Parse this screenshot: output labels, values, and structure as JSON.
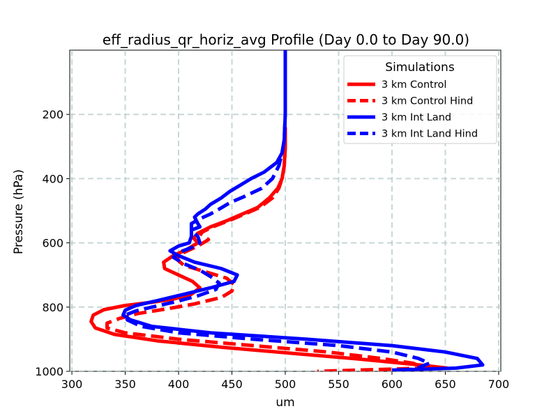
{
  "chart_data": {
    "type": "line",
    "title": "eff_radius_qr_horiz_avg Profile (Day 0.0 to Day 90.0)",
    "xlabel": "um",
    "ylabel": "Pressure (hPa)",
    "xlim": [
      298,
      702
    ],
    "ylim": [
      1000,
      0
    ],
    "x_ticks": [
      300,
      350,
      400,
      450,
      500,
      550,
      600,
      650,
      700
    ],
    "y_ticks": [
      200,
      400,
      600,
      800,
      1000
    ],
    "grid": true,
    "legend": {
      "title": "Simulations",
      "placement": "top-right"
    },
    "series": [
      {
        "name": "3 km Control",
        "color": "#ff0000",
        "dash": "solid",
        "points": [
          [
            500,
            240
          ],
          [
            500,
            300
          ],
          [
            499,
            360
          ],
          [
            497,
            400
          ],
          [
            493,
            430
          ],
          [
            485,
            460
          ],
          [
            474,
            490
          ],
          [
            460,
            510
          ],
          [
            446,
            530
          ],
          [
            430,
            550
          ],
          [
            418,
            570
          ],
          [
            414,
            585
          ],
          [
            418,
            600
          ],
          [
            408,
            620
          ],
          [
            395,
            640
          ],
          [
            386,
            660
          ],
          [
            387,
            680
          ],
          [
            400,
            700
          ],
          [
            413,
            720
          ],
          [
            420,
            740
          ],
          [
            412,
            760
          ],
          [
            395,
            775
          ],
          [
            375,
            785
          ],
          [
            350,
            795
          ],
          [
            330,
            808
          ],
          [
            320,
            825
          ],
          [
            318,
            845
          ],
          [
            322,
            865
          ],
          [
            340,
            885
          ],
          [
            380,
            905
          ],
          [
            440,
            925
          ],
          [
            510,
            945
          ],
          [
            570,
            962
          ],
          [
            620,
            978
          ],
          [
            652,
            990
          ]
        ]
      },
      {
        "name": "3 km Control Hind",
        "color": "#ff0000",
        "dash": "dashed",
        "points": [
          [
            500,
            240
          ],
          [
            500,
            300
          ],
          [
            499,
            360
          ],
          [
            497,
            400
          ],
          [
            494,
            430
          ],
          [
            488,
            460
          ],
          [
            476,
            490
          ],
          [
            462,
            510
          ],
          [
            448,
            530
          ],
          [
            432,
            550
          ],
          [
            420,
            570
          ],
          [
            428,
            590
          ],
          [
            418,
            610
          ],
          [
            405,
            630
          ],
          [
            398,
            650
          ],
          [
            405,
            670
          ],
          [
            425,
            690
          ],
          [
            445,
            710
          ],
          [
            452,
            730
          ],
          [
            450,
            750
          ],
          [
            440,
            770
          ],
          [
            415,
            790
          ],
          [
            390,
            805
          ],
          [
            362,
            820
          ],
          [
            345,
            835
          ],
          [
            333,
            850
          ],
          [
            333,
            865
          ],
          [
            350,
            880
          ],
          [
            400,
            900
          ],
          [
            470,
            920
          ],
          [
            540,
            940
          ],
          [
            590,
            960
          ],
          [
            620,
            975
          ],
          [
            630,
            990
          ],
          [
            570,
            996
          ],
          [
            530,
            1000
          ]
        ]
      },
      {
        "name": "3 km Int Land",
        "color": "#0000ff",
        "dash": "solid",
        "points": [
          [
            500,
            0
          ],
          [
            500,
            100
          ],
          [
            500,
            200
          ],
          [
            499,
            280
          ],
          [
            497,
            320
          ],
          [
            492,
            350
          ],
          [
            480,
            380
          ],
          [
            468,
            400
          ],
          [
            458,
            420
          ],
          [
            448,
            440
          ],
          [
            440,
            460
          ],
          [
            430,
            480
          ],
          [
            425,
            495
          ],
          [
            418,
            510
          ],
          [
            415,
            520
          ],
          [
            418,
            540
          ],
          [
            420,
            550
          ],
          [
            412,
            560
          ],
          [
            412,
            580
          ],
          [
            410,
            600
          ],
          [
            400,
            610
          ],
          [
            392,
            625
          ],
          [
            400,
            640
          ],
          [
            415,
            660
          ],
          [
            440,
            680
          ],
          [
            455,
            700
          ],
          [
            452,
            720
          ],
          [
            430,
            740
          ],
          [
            405,
            760
          ],
          [
            380,
            780
          ],
          [
            360,
            795
          ],
          [
            350,
            810
          ],
          [
            348,
            825
          ],
          [
            355,
            840
          ],
          [
            375,
            860
          ],
          [
            430,
            880
          ],
          [
            520,
            900
          ],
          [
            600,
            920
          ],
          [
            650,
            940
          ],
          [
            680,
            960
          ],
          [
            685,
            980
          ],
          [
            660,
            990
          ],
          [
            600,
            996
          ]
        ]
      },
      {
        "name": "3 km Int Land Hind",
        "color": "#0000ff",
        "dash": "dashed",
        "points": [
          [
            500,
            0
          ],
          [
            500,
            100
          ],
          [
            500,
            200
          ],
          [
            499,
            280
          ],
          [
            497,
            320
          ],
          [
            494,
            360
          ],
          [
            488,
            400
          ],
          [
            478,
            430
          ],
          [
            462,
            455
          ],
          [
            448,
            475
          ],
          [
            438,
            495
          ],
          [
            430,
            510
          ],
          [
            420,
            525
          ],
          [
            412,
            540
          ],
          [
            412,
            560
          ],
          [
            418,
            580
          ],
          [
            420,
            600
          ],
          [
            412,
            615
          ],
          [
            400,
            630
          ],
          [
            395,
            645
          ],
          [
            405,
            665
          ],
          [
            420,
            685
          ],
          [
            430,
            705
          ],
          [
            438,
            725
          ],
          [
            435,
            745
          ],
          [
            418,
            765
          ],
          [
            395,
            785
          ],
          [
            375,
            800
          ],
          [
            360,
            812
          ],
          [
            350,
            825
          ],
          [
            352,
            840
          ],
          [
            365,
            860
          ],
          [
            400,
            880
          ],
          [
            470,
            900
          ],
          [
            550,
            920
          ],
          [
            600,
            940
          ],
          [
            625,
            960
          ],
          [
            635,
            975
          ],
          [
            625,
            988
          ],
          [
            615,
            996
          ],
          [
            612,
            1000
          ]
        ]
      }
    ]
  }
}
